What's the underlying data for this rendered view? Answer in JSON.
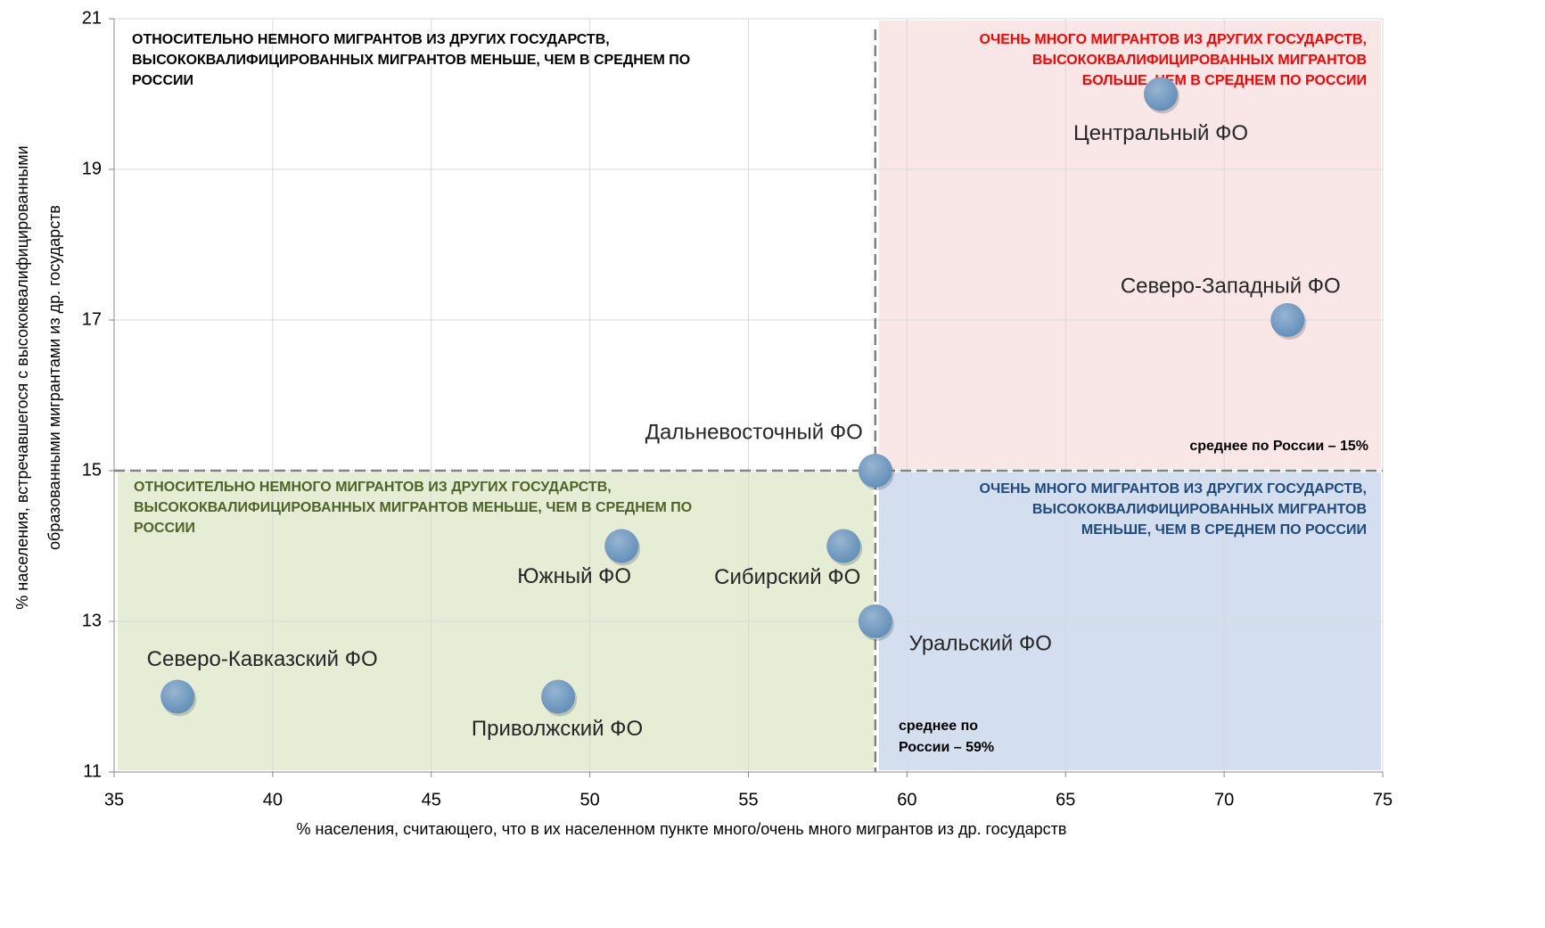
{
  "chart_data": {
    "type": "scatter",
    "x_label": "% населения, считающего, что в их населенном пункте много/очень много мигрантов из др. государств",
    "y_label": [
      "% населения, встречавшегося с высококвалифицированными",
      "образованными мигрантами из др. государств"
    ],
    "labels": [
      "Центральный ФО",
      "Северо-Западный ФО",
      "Дальневосточный ФО",
      "Южный ФО",
      "Сибирский ФО",
      "Уральский ФО",
      "Северо-Кавказский ФО",
      "Приволжский ФО"
    ],
    "x": [
      68,
      72,
      59,
      51,
      58,
      59,
      37,
      49
    ],
    "values": [
      20,
      17,
      15,
      14,
      14,
      13,
      12,
      12
    ],
    "color": "#5f8db8",
    "xlim": [
      35,
      75
    ],
    "xticks": [
      35,
      40,
      45,
      50,
      55,
      60,
      65,
      70,
      75
    ],
    "ylim": [
      11,
      21
    ],
    "yticks": [
      11,
      13,
      15,
      17,
      19,
      21
    ],
    "grid": true,
    "reference_lines": {
      "x": 59,
      "y": 15
    },
    "reference_labels": {
      "y": [
        "среднее по России – 15%"
      ],
      "x": [
        "среднее по",
        "России – 59%"
      ]
    },
    "quadrants": [
      {
        "lines": [
          "ОТНОСИТЕЛЬНО НЕМНОГО МИГРАНТОВ ИЗ ДРУГИХ ГОСУДАРСТВ,",
          "ВЫСОКОКВАЛИФИЦИРОВАННЫХ МИГРАНТОВ МЕНЬШЕ, ЧЕМ В СРЕДНЕМ ПО",
          "РОССИИ"
        ],
        "color": "#000000",
        "fill": "none"
      },
      {
        "lines": [
          "ОЧЕНЬ МНОГО МИГРАНТОВ ИЗ ДРУГИХ ГОСУДАРСТВ,",
          "ВЫСОКОКВАЛИФИЦИРОВАННЫХ МИГРАНТОВ",
          "БОЛЬШЕ, ЧЕМ В СРЕДНЕМ ПО РОССИИ"
        ],
        "color": "#ff0000",
        "fill": "#f9e6e6"
      },
      {
        "lines": [
          "ОТНОСИТЕЛЬНО НЕМНОГО МИГРАНТОВ ИЗ ДРУГИХ ГОСУДАРСТВ,",
          "ВЫСОКОКВАЛИФИЦИРОВАННЫХ МИГРАНТОВ МЕНЬШЕ, ЧЕМ В СРЕДНЕМ ПО",
          "РОССИИ"
        ],
        "color": "#4f6228",
        "fill": "#e5edd5"
      },
      {
        "lines": [
          "ОЧЕНЬ МНОГО МИГРАНТОВ ИЗ ДРУГИХ ГОСУДАРСТВ,",
          "ВЫСОКОКВАЛИФИЦИРОВАННЫХ МИГРАНТОВ",
          "МЕНЬШЕ, ЧЕМ В СРЕДНЕМ ПО РОССИИ"
        ],
        "color": "#1f497d",
        "fill": "#d3deee"
      }
    ]
  }
}
